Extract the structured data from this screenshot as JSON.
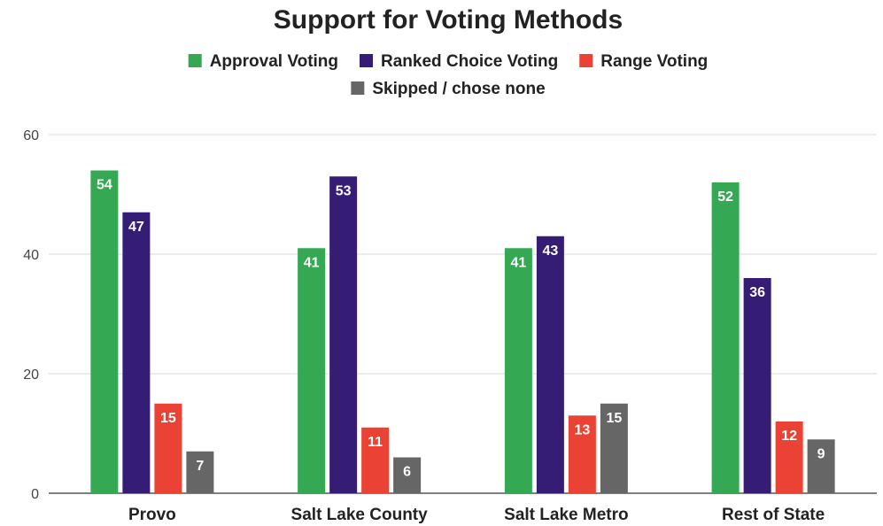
{
  "chart_data": {
    "type": "bar",
    "title": "Support for Voting Methods",
    "xlabel": "",
    "ylabel": "",
    "categories": [
      "Provo",
      "Salt Lake County",
      "Salt Lake Metro",
      "Rest of State"
    ],
    "series": [
      {
        "name": "Approval Voting",
        "color": "#34a853",
        "values": [
          54,
          41,
          41,
          52
        ]
      },
      {
        "name": "Ranked Choice Voting",
        "color": "#351c75",
        "values": [
          47,
          53,
          43,
          36
        ]
      },
      {
        "name": "Range Voting",
        "color": "#ea4335",
        "values": [
          15,
          11,
          13,
          12
        ]
      },
      {
        "name": "Skipped / chose none",
        "color": "#666666",
        "values": [
          7,
          6,
          15,
          9
        ]
      }
    ],
    "ylim": [
      0,
      60
    ],
    "yticks": [
      0,
      20,
      40,
      60
    ],
    "grid": true,
    "legend_position": "top",
    "data_labels": true
  }
}
